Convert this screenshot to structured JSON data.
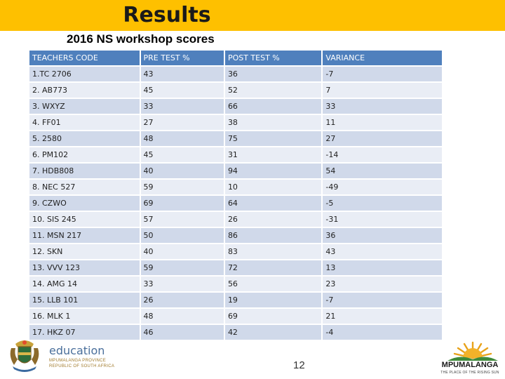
{
  "header": {
    "title": "Results",
    "subtitle": "2016 NS workshop scores"
  },
  "table": {
    "columns": [
      "TEACHERS CODE",
      "PRE TEST %",
      "POST TEST %",
      "VARIANCE"
    ],
    "rows": [
      [
        "1.TC 2706",
        "43",
        "36",
        "-7"
      ],
      [
        "2. AB773",
        "45",
        "52",
        "7"
      ],
      [
        "3. WXYZ",
        "33",
        "66",
        "33"
      ],
      [
        "4. FF01",
        "27",
        "38",
        "11"
      ],
      [
        "5. 2580",
        "48",
        "75",
        "27"
      ],
      [
        "6. PM102",
        "45",
        "31",
        "-14"
      ],
      [
        "7. HDB808",
        "40",
        "94",
        "54"
      ],
      [
        "8. NEC 527",
        "59",
        "10",
        "-49"
      ],
      [
        "9. CZWO",
        "69",
        "64",
        "-5"
      ],
      [
        "10. SIS 245",
        "57",
        "26",
        "-31"
      ],
      [
        "11. MSN 217",
        "50",
        "86",
        "36"
      ],
      [
        "12. SKN",
        "40",
        "83",
        "43"
      ],
      [
        "13. VVV 123",
        "59",
        "72",
        "13"
      ],
      [
        "14. AMG 14",
        "33",
        "56",
        "23"
      ],
      [
        "15. LLB 101",
        "26",
        "19",
        "-7"
      ],
      [
        "16. MLK 1",
        "48",
        "69",
        "21"
      ],
      [
        "17. HKZ 07",
        "46",
        "42",
        "-4"
      ]
    ]
  },
  "footer": {
    "education_word": "education",
    "province_line": "MPUMALANGA PROVINCE",
    "republic_line": "REPUBLIC OF SOUTH AFRICA",
    "page_number": "12",
    "mpumalanga_word": "MPUMALANGA",
    "mpumalanga_tagline": "THE PLACE OF THE RISING SUN"
  },
  "colors": {
    "title_bar": "#fec000",
    "header_row": "#4f80bd",
    "row_odd": "#d0d9ea",
    "row_even": "#e9edf5"
  },
  "icons": {
    "left_logo": "coat-of-arms-icon",
    "right_logo": "rising-sun-icon"
  }
}
